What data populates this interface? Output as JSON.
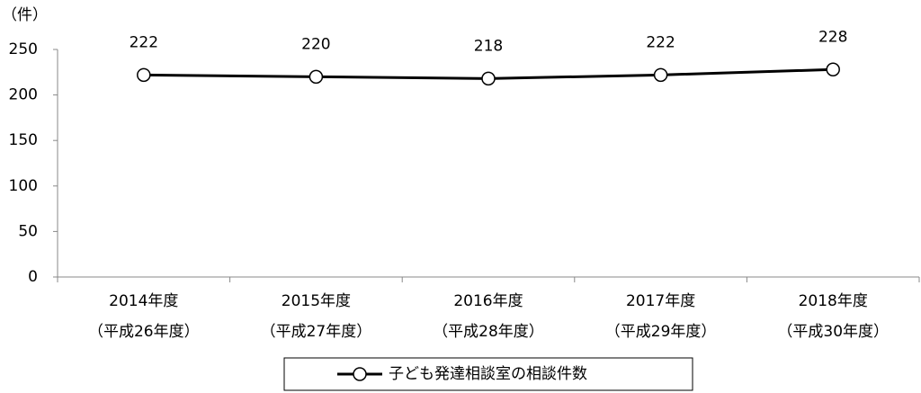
{
  "chart_data": {
    "type": "line",
    "y_axis_label": "（件）",
    "categories": [
      [
        "2014年度",
        "（平成26年度）"
      ],
      [
        "2015年度",
        "（平成27年度）"
      ],
      [
        "2016年度",
        "（平成28年度）"
      ],
      [
        "2017年度",
        "（平成29年度）"
      ],
      [
        "2018年度",
        "（平成30年度）"
      ]
    ],
    "series": [
      {
        "name": "子ども発達相談室の相談件数",
        "color": "#000000",
        "values": [
          222,
          220,
          218,
          222,
          228
        ]
      }
    ],
    "ylim": [
      0,
      250
    ],
    "yticks": [
      0,
      50,
      100,
      150,
      200,
      250
    ],
    "grid": false,
    "legend": "bottom"
  }
}
